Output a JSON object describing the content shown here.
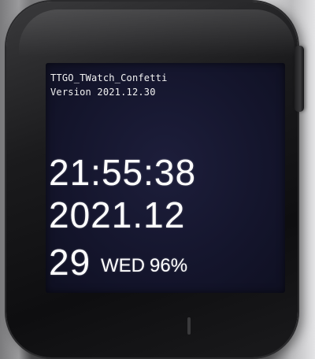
{
  "screen": {
    "app_title": "TTGO_TWatch_Confetti",
    "version": "Version 2021.12.30",
    "time": "21:55:38",
    "year_month": "2021.12",
    "day": "29",
    "weekday": "WED",
    "battery": "96%"
  },
  "colors": {
    "screen_background": "#15162e",
    "text": "#ffffff",
    "watch_case": "#121214"
  }
}
